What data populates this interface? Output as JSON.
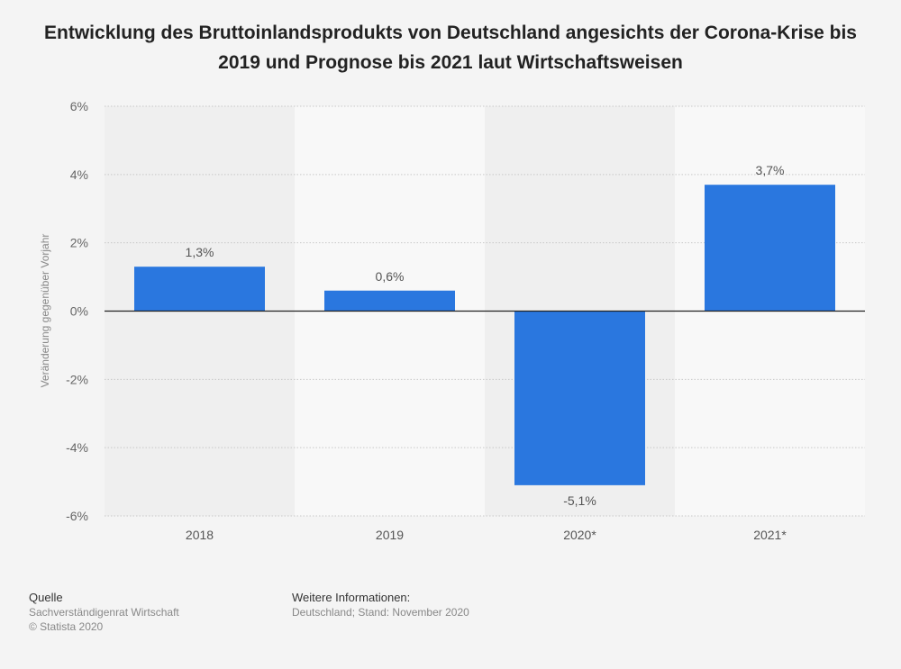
{
  "title": "Entwicklung des Bruttoinlandsprodukts von Deutschland angesichts der Corona-Krise bis 2019 und Prognose bis 2021 laut Wirtschaftsweisen",
  "chart_data": {
    "type": "bar",
    "title": "Entwicklung des Bruttoinlandsprodukts von Deutschland angesichts der Corona-Krise bis 2019 und Prognose bis 2021 laut Wirtschaftsweisen",
    "xlabel": "",
    "ylabel": "Veränderung gegenüber Vorjahr",
    "categories": [
      "2018",
      "2019",
      "2020*",
      "2021*"
    ],
    "values": [
      1.3,
      0.6,
      -5.1,
      3.7
    ],
    "value_labels": [
      "1,3%",
      "0,6%",
      "-5,1%",
      "3,7%"
    ],
    "ylim": [
      -6,
      6
    ],
    "yticks": [
      6,
      4,
      2,
      0,
      -2,
      -4,
      -6
    ],
    "ytick_labels": [
      "6%",
      "4%",
      "2%",
      "0%",
      "-2%",
      "-4%",
      "-6%"
    ],
    "grid": true,
    "legend": "none",
    "bar_color": "#2a77df"
  },
  "footer": {
    "source_heading": "Quelle",
    "source": "Sachverständigenrat Wirtschaft",
    "copyright": "© Statista 2020",
    "info_heading": "Weitere Informationen:",
    "info": "Deutschland; Stand: November 2020"
  }
}
